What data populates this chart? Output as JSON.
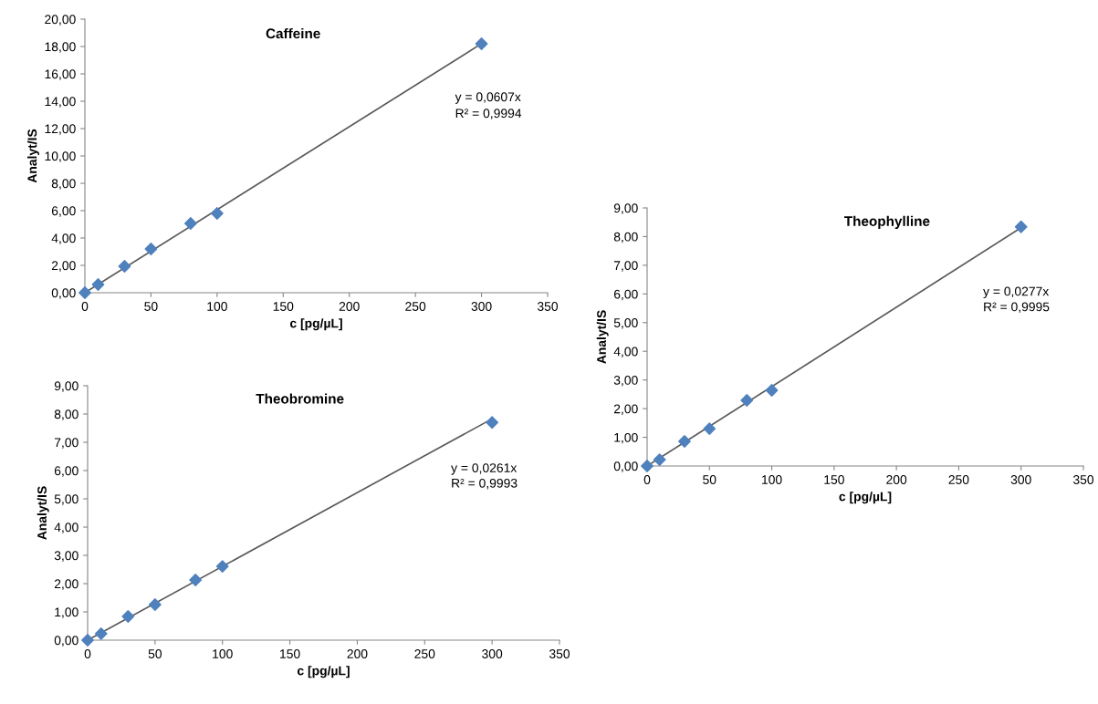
{
  "chart_data": [
    {
      "type": "scatter",
      "title": "Caffeine",
      "xlabel": "c [pg/µL]",
      "ylabel": "Analyt/IS",
      "marker": "diamond",
      "grid": false,
      "legend": false,
      "xlim": [
        0,
        350
      ],
      "xticks": [
        0,
        50,
        100,
        150,
        200,
        250,
        300,
        350
      ],
      "ylim": [
        0,
        20
      ],
      "yticks": [
        {
          "value": 0,
          "label": "0,00"
        },
        {
          "value": 2,
          "label": "2,00"
        },
        {
          "value": 4,
          "label": "4,00"
        },
        {
          "value": 6,
          "label": "6,00"
        },
        {
          "value": 8,
          "label": "8,00"
        },
        {
          "value": 10,
          "label": "10,00"
        },
        {
          "value": 12,
          "label": "12,00"
        },
        {
          "value": 14,
          "label": "14,00"
        },
        {
          "value": 16,
          "label": "16,00"
        },
        {
          "value": 18,
          "label": "18,00"
        },
        {
          "value": 20,
          "label": "20,00"
        }
      ],
      "series": [
        {
          "type": "line",
          "color": "#595959",
          "marker": "none",
          "x": [
            0,
            300
          ],
          "values": [
            0,
            18.21
          ]
        },
        {
          "color": "#4f81bd",
          "x": [
            0,
            10,
            30,
            50,
            80,
            100,
            300
          ],
          "values": [
            0,
            0.6,
            1.93,
            3.2,
            5.07,
            5.8,
            18.2
          ]
        }
      ],
      "annotations": [
        "y = 0,0607x",
        "R² = 0,9994"
      ]
    },
    {
      "type": "scatter",
      "title": "Theophylline",
      "xlabel": "c [pg/µL]",
      "ylabel": "Analyt/IS",
      "marker": "diamond",
      "grid": false,
      "legend": false,
      "xlim": [
        0,
        350
      ],
      "xticks": [
        0,
        50,
        100,
        150,
        200,
        250,
        300,
        350
      ],
      "ylim": [
        0,
        9
      ],
      "yticks": [
        {
          "value": 0,
          "label": "0,00"
        },
        {
          "value": 1,
          "label": "1,00"
        },
        {
          "value": 2,
          "label": "2,00"
        },
        {
          "value": 3,
          "label": "3,00"
        },
        {
          "value": 4,
          "label": "4,00"
        },
        {
          "value": 5,
          "label": "5,00"
        },
        {
          "value": 6,
          "label": "6,00"
        },
        {
          "value": 7,
          "label": "7,00"
        },
        {
          "value": 8,
          "label": "8,00"
        },
        {
          "value": 9,
          "label": "9,00"
        }
      ],
      "series": [
        {
          "type": "line",
          "color": "#595959",
          "marker": "none",
          "x": [
            0,
            300
          ],
          "values": [
            0,
            8.31
          ]
        },
        {
          "color": "#4f81bd",
          "x": [
            0,
            10,
            30,
            50,
            80,
            100,
            300
          ],
          "values": [
            0,
            0.22,
            0.86,
            1.3,
            2.29,
            2.64,
            8.34
          ]
        }
      ],
      "annotations": [
        "y = 0,0277x",
        "R² = 0,9995"
      ]
    },
    {
      "type": "scatter",
      "title": "Theobromine",
      "xlabel": "c [pg/µL]",
      "ylabel": "Analyt/IS",
      "marker": "diamond",
      "grid": false,
      "legend": false,
      "xlim": [
        0,
        350
      ],
      "xticks": [
        0,
        50,
        100,
        150,
        200,
        250,
        300,
        350
      ],
      "ylim": [
        0,
        9
      ],
      "yticks": [
        {
          "value": 0,
          "label": "0,00"
        },
        {
          "value": 1,
          "label": "1,00"
        },
        {
          "value": 2,
          "label": "2,00"
        },
        {
          "value": 3,
          "label": "3,00"
        },
        {
          "value": 4,
          "label": "4,00"
        },
        {
          "value": 5,
          "label": "5,00"
        },
        {
          "value": 6,
          "label": "6,00"
        },
        {
          "value": 7,
          "label": "7,00"
        },
        {
          "value": 8,
          "label": "8,00"
        },
        {
          "value": 9,
          "label": "9,00"
        }
      ],
      "series": [
        {
          "type": "line",
          "color": "#595959",
          "marker": "none",
          "x": [
            0,
            300
          ],
          "values": [
            0,
            7.83
          ]
        },
        {
          "color": "#4f81bd",
          "x": [
            0,
            10,
            30,
            50,
            80,
            100,
            300
          ],
          "values": [
            0,
            0.23,
            0.84,
            1.26,
            2.13,
            2.61,
            7.7
          ]
        }
      ],
      "annotations": [
        "y = 0,0261x",
        "R² = 0,9993"
      ]
    }
  ]
}
